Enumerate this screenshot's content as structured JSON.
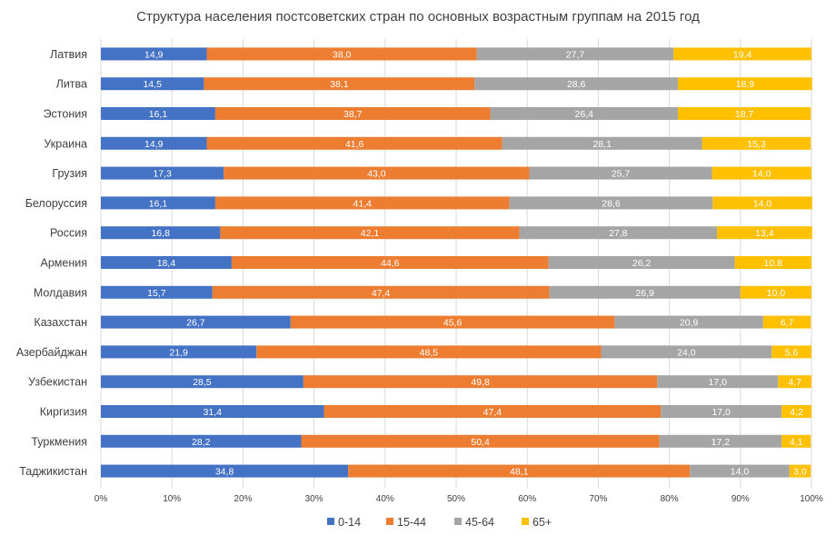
{
  "chart_data": {
    "type": "bar",
    "orientation": "horizontal",
    "stacked": "percent",
    "title": "Структура населения постсоветских стран по основных возрастным группам на 2015 год",
    "xlabel": "",
    "ylabel": "",
    "xlim": [
      0,
      100
    ],
    "x_ticks": [
      "0%",
      "10%",
      "20%",
      "30%",
      "40%",
      "50%",
      "60%",
      "70%",
      "80%",
      "90%",
      "100%"
    ],
    "grid": true,
    "legend_position": "bottom",
    "categories": [
      "Латвия",
      "Литва",
      "Эстония",
      "Украина",
      "Грузия",
      "Белоруссия",
      "Россия",
      "Армения",
      "Молдавия",
      "Казахстан",
      "Азербайджан",
      "Узбекистан",
      "Киргизия",
      "Туркмения",
      "Таджикистан"
    ],
    "series": [
      {
        "name": "0-14",
        "color": "#4472C4",
        "values": [
          14.9,
          14.5,
          16.1,
          14.9,
          17.3,
          16.1,
          16.8,
          18.4,
          15.7,
          26.7,
          21.9,
          28.5,
          31.4,
          28.2,
          34.8
        ]
      },
      {
        "name": "15-44",
        "color": "#ED7D31",
        "values": [
          38.0,
          38.1,
          38.7,
          41.6,
          43.0,
          41.4,
          42.1,
          44.6,
          47.4,
          45.6,
          48.5,
          49.8,
          47.4,
          50.4,
          48.1
        ]
      },
      {
        "name": "45-64",
        "color": "#A5A5A5",
        "values": [
          27.7,
          28.6,
          26.4,
          28.1,
          25.7,
          28.6,
          27.8,
          26.2,
          26.9,
          20.9,
          24.0,
          17.0,
          17.0,
          17.2,
          14.0
        ]
      },
      {
        "name": "65+",
        "color": "#FFC000",
        "values": [
          19.4,
          18.9,
          18.7,
          15.3,
          14.0,
          14.0,
          13.4,
          10.8,
          10.0,
          6.7,
          5.6,
          4.7,
          4.2,
          4.1,
          3.0
        ]
      }
    ],
    "value_labels": [
      [
        "14,9",
        "14,5",
        "16,1",
        "14,9",
        "17,3",
        "16,1",
        "16,8",
        "18,4",
        "15,7",
        "26,7",
        "21,9",
        "28,5",
        "31,4",
        "28,2",
        "34,8"
      ],
      [
        "38,0",
        "38,1",
        "38,7",
        "41,6",
        "43,0",
        "41,4",
        "42,1",
        "44,6",
        "47,4",
        "45,6",
        "48,5",
        "49,8",
        "47,4",
        "50,4",
        "48,1"
      ],
      [
        "27,7",
        "28,6",
        "26,4",
        "28,1",
        "25,7",
        "28,6",
        "27,8",
        "26,2",
        "26,9",
        "20,9",
        "24,0",
        "17,0",
        "17,0",
        "17,2",
        "14,0"
      ],
      [
        "19,4",
        "18,9",
        "18,7",
        "15,3",
        "14,0",
        "14,0",
        "13,4",
        "10,8",
        "10,0",
        "6,7",
        "5,6",
        "4,7",
        "4,2",
        "4,1",
        "3,0"
      ]
    ],
    "gridline_color": "#D9D9D9"
  }
}
